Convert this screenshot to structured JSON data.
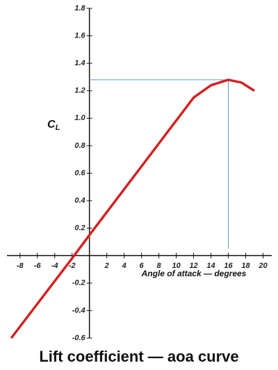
{
  "chart_data": {
    "type": "line",
    "title": "Lift coefficient — aoa curve",
    "y_label": {
      "main": "C",
      "sub": "L"
    },
    "x_label": "Angle of attack — degrees",
    "series": [
      {
        "color": "#d42020",
        "x": [
          -9,
          -2,
          0,
          12,
          14,
          16,
          17.5,
          19
        ],
        "values": [
          -0.6,
          -0.02,
          0.15,
          1.15,
          1.24,
          1.28,
          1.26,
          1.2
        ]
      }
    ],
    "reference": {
      "x": 16,
      "y": 1.28,
      "color": "#5b9bd5"
    },
    "xlim": [
      -9.5,
      21
    ],
    "ylim": [
      -0.6,
      1.8
    ],
    "xticks": [
      -8,
      -6,
      -4,
      -2,
      2,
      4,
      6,
      8,
      10,
      12,
      14,
      16,
      18,
      20
    ],
    "yticks": [
      1.8,
      1.6,
      1.4,
      1.2,
      {
        "value": 1,
        "label": "1.0"
      },
      0.8,
      0.6,
      0.4,
      0.2,
      -0.2,
      -0.4,
      -0.6
    ]
  }
}
